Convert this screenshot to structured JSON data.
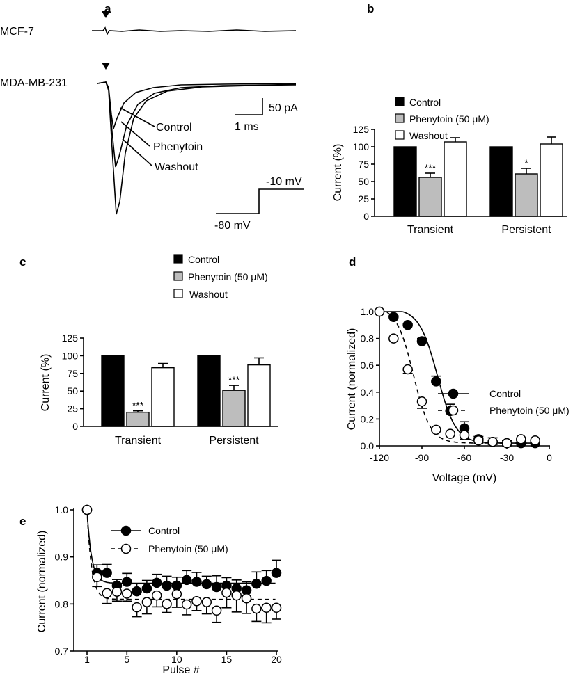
{
  "panels": {
    "a": {
      "label": "a",
      "cell_lines": [
        "MCF-7",
        "MDA-MB-231"
      ],
      "trace_labels": [
        "Control",
        "Phenytoin",
        "Washout"
      ],
      "scale_current": "50 pA",
      "scale_time": "1 ms",
      "protocol_high": "-10 mV",
      "protocol_low": "-80 mV"
    },
    "b": {
      "label": "b"
    },
    "c": {
      "label": "c"
    },
    "d": {
      "label": "d"
    },
    "e": {
      "label": "e"
    }
  },
  "colors": {
    "control": "#000000",
    "phenytoin": "#bdbdbd",
    "washout": "#ffffff"
  },
  "chart_data": [
    {
      "id": "b",
      "type": "bar",
      "ylabel": "Current (%)",
      "ylim": [
        0,
        125
      ],
      "yticks": [
        0,
        25,
        50,
        75,
        100,
        125
      ],
      "categories": [
        "Transient",
        "Persistent"
      ],
      "legend": [
        "Control",
        "Phenytoin (50 μM)",
        "Washout"
      ],
      "series": [
        {
          "name": "Control",
          "values": [
            100,
            100
          ],
          "errors": [
            0,
            0
          ],
          "sig": [
            "",
            ""
          ]
        },
        {
          "name": "Phenytoin (50 μM)",
          "values": [
            56,
            61
          ],
          "errors": [
            6,
            8
          ],
          "sig": [
            "***",
            "*"
          ]
        },
        {
          "name": "Washout",
          "values": [
            107,
            104
          ],
          "errors": [
            6,
            10
          ],
          "sig": [
            "",
            ""
          ]
        }
      ]
    },
    {
      "id": "c",
      "type": "bar",
      "ylabel": "Current (%)",
      "ylim": [
        0,
        125
      ],
      "yticks": [
        0,
        25,
        50,
        75,
        100,
        125
      ],
      "categories": [
        "Transient",
        "Persistent"
      ],
      "legend": [
        "Control",
        "Phenytoin (50 μM)",
        "Washout"
      ],
      "series": [
        {
          "name": "Control",
          "values": [
            100,
            100
          ],
          "errors": [
            0,
            0
          ],
          "sig": [
            "",
            ""
          ]
        },
        {
          "name": "Phenytoin (50 μM)",
          "values": [
            20,
            51
          ],
          "errors": [
            2,
            7
          ],
          "sig": [
            "***",
            "***"
          ]
        },
        {
          "name": "Washout",
          "values": [
            83,
            87
          ],
          "errors": [
            6,
            10
          ],
          "sig": [
            "",
            ""
          ]
        }
      ]
    },
    {
      "id": "d",
      "type": "scatter",
      "xlabel": "Voltage (mV)",
      "ylabel": "Current (normalized)",
      "xlim": [
        -120,
        0
      ],
      "ylim": [
        0,
        1.0
      ],
      "xticks": [
        -120,
        -90,
        -60,
        -30,
        0
      ],
      "yticks": [
        0.0,
        0.2,
        0.4,
        0.6,
        0.8,
        1.0
      ],
      "x": [
        -120,
        -110,
        -100,
        -90,
        -80,
        -70,
        -60,
        -50,
        -40,
        -30,
        -20,
        -10
      ],
      "series": [
        {
          "name": "Control",
          "values": [
            1.0,
            0.96,
            0.9,
            0.78,
            0.48,
            0.26,
            0.13,
            0.05,
            0.03,
            0.02,
            0.02,
            0.02
          ],
          "errors": [
            0,
            0.01,
            0.01,
            0.02,
            0.04,
            0.05,
            0.05,
            0.02,
            0.03,
            0.02,
            0.02,
            0.01
          ]
        },
        {
          "name": "Phenytoin (50 μM)",
          "values": [
            1.0,
            0.8,
            0.57,
            0.33,
            0.12,
            0.09,
            0.08,
            0.04,
            0.03,
            0.02,
            0.05,
            0.04
          ],
          "errors": [
            0,
            0.01,
            0.03,
            0.05,
            0.01,
            0.01,
            0.03,
            0.02,
            0.02,
            0.02,
            0.01,
            0.01
          ]
        }
      ]
    },
    {
      "id": "e",
      "type": "scatter",
      "xlabel": "Pulse #",
      "ylabel": "Current (normalized)",
      "xlim": [
        1,
        20
      ],
      "ylim": [
        0.7,
        1.0
      ],
      "xticks": [
        1,
        5,
        10,
        15,
        20
      ],
      "yticks": [
        0.7,
        0.8,
        0.9,
        1.0
      ],
      "x": [
        1,
        2,
        3,
        4,
        5,
        6,
        7,
        8,
        9,
        10,
        11,
        12,
        13,
        14,
        15,
        16,
        17,
        18,
        19,
        20
      ],
      "series": [
        {
          "name": "Control",
          "values": [
            1.0,
            0.866,
            0.866,
            0.839,
            0.847,
            0.827,
            0.833,
            0.845,
            0.839,
            0.839,
            0.851,
            0.847,
            0.842,
            0.836,
            0.839,
            0.833,
            0.829,
            0.843,
            0.849,
            0.866
          ],
          "errors": [
            0,
            0.017,
            0.018,
            0.013,
            0.018,
            0.016,
            0.017,
            0.018,
            0.02,
            0.018,
            0.02,
            0.02,
            0.017,
            0.024,
            0.017,
            0.018,
            0.018,
            0.025,
            0.022,
            0.027
          ]
        },
        {
          "name": "Phenytoin (50 μM)",
          "values": [
            1.0,
            0.857,
            0.823,
            0.826,
            0.822,
            0.793,
            0.804,
            0.818,
            0.8,
            0.821,
            0.799,
            0.806,
            0.804,
            0.786,
            0.824,
            0.818,
            0.812,
            0.79,
            0.792,
            0.792
          ],
          "errors": [
            0,
            0.02,
            0.022,
            0.02,
            0.016,
            0.02,
            0.025,
            0.024,
            0.018,
            0.028,
            0.022,
            0.02,
            0.025,
            0.025,
            0.032,
            0.035,
            0.032,
            0.027,
            0.032,
            0.024
          ]
        }
      ]
    }
  ]
}
